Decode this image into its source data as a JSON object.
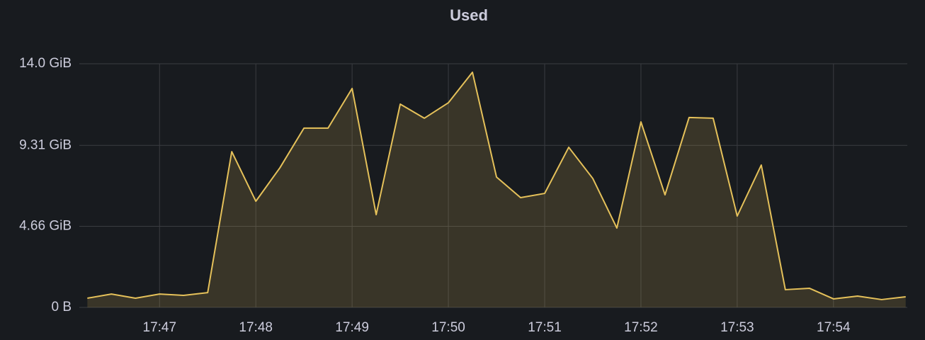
{
  "chart_data": {
    "type": "area",
    "title": "Used",
    "x": [
      "17:46:15",
      "17:46:30",
      "17:46:45",
      "17:47:00",
      "17:47:15",
      "17:47:30",
      "17:47:45",
      "17:48:00",
      "17:48:15",
      "17:48:30",
      "17:48:45",
      "17:49:00",
      "17:49:15",
      "17:49:30",
      "17:49:45",
      "17:50:00",
      "17:50:15",
      "17:50:30",
      "17:50:45",
      "17:51:00",
      "17:51:15",
      "17:51:30",
      "17:51:45",
      "17:52:00",
      "17:52:15",
      "17:52:30",
      "17:52:45",
      "17:53:00",
      "17:53:15",
      "17:53:30",
      "17:53:45",
      "17:54:00",
      "17:54:15",
      "17:54:30",
      "17:54:45"
    ],
    "series": [
      {
        "color": "#e5c15a",
        "values": [
          0.53,
          0.77,
          0.53,
          0.77,
          0.69,
          0.85,
          8.95,
          6.1,
          8.02,
          10.3,
          10.3,
          12.58,
          5.33,
          11.68,
          10.87,
          11.76,
          13.51,
          7.49,
          6.31,
          6.55,
          9.2,
          7.41,
          4.56,
          10.66,
          6.47,
          10.91,
          10.87,
          5.25,
          8.18,
          1.02,
          1.1,
          0.49,
          0.65,
          0.45,
          0.61
        ]
      }
    ],
    "xlim": [
      "17:46:10",
      "17:54:46"
    ],
    "xticks": [
      "17:47",
      "17:48",
      "17:49",
      "17:50",
      "17:51",
      "17:52",
      "17:53",
      "17:54"
    ],
    "ylim": [
      0,
      14
    ],
    "yticks": [
      {
        "value": 0,
        "label": "0 B"
      },
      {
        "value": 4.66,
        "label": "4.66 GiB"
      },
      {
        "value": 9.31,
        "label": "9.31 GiB"
      },
      {
        "value": 14,
        "label": "14.0 GiB"
      }
    ],
    "grid": true
  }
}
